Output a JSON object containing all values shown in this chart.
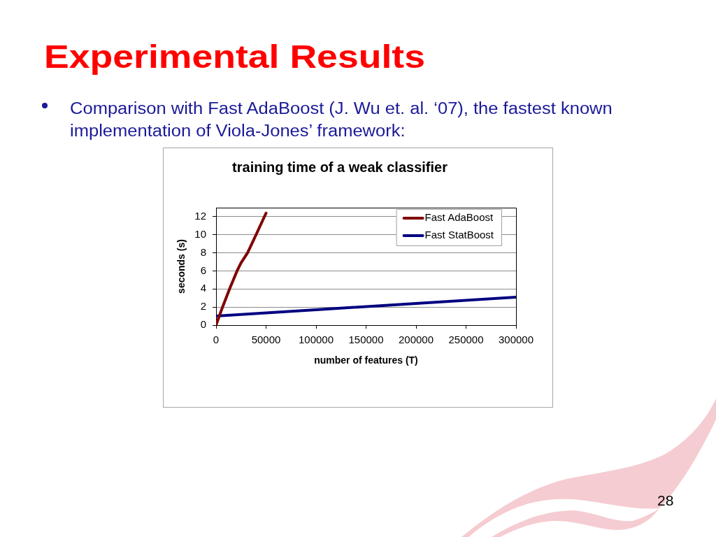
{
  "chart_data": {
    "type": "line",
    "title": "training time of a weak classifier",
    "xlabel": "number of features (T)",
    "ylabel": "seconds (s)",
    "series": [
      {
        "name": "Fast AdaBoost",
        "color": "#800000",
        "x": [
          0,
          6500,
          13500,
          21000,
          25000,
          31500,
          40000,
          50000
        ],
        "values": [
          0,
          2,
          4,
          6,
          6.9,
          8,
          10,
          12.4
        ]
      },
      {
        "name": "Fast StatBoost",
        "color": "#000080",
        "x": [
          0,
          100000,
          200000,
          300000
        ],
        "values": [
          1.0,
          1.7,
          2.4,
          3.1
        ]
      }
    ],
    "xlim": [
      0,
      300000
    ],
    "xticks": [
      0,
      50000,
      100000,
      150000,
      200000,
      250000,
      300000
    ],
    "ylim": [
      0,
      13
    ],
    "yticks": [
      0,
      2,
      4,
      6,
      8,
      10,
      12
    ],
    "grid": "y",
    "legend": "top right",
    "marker": "none",
    "annotations": [
      "Experimental Results",
      "Comparison with Fast AdaBoost (J. Wu et. al. ‘07), the fastest known implementation of Viola-Jones’ framework:",
      "28"
    ]
  }
}
